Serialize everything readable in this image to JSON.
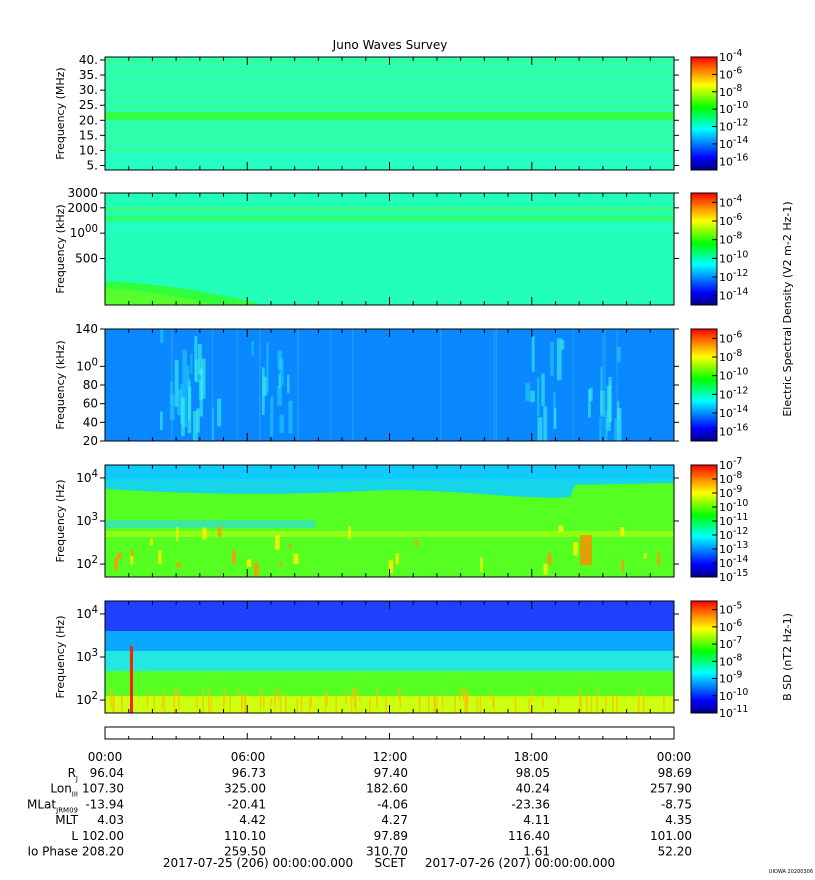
{
  "title": "Juno Waves Survey",
  "credit": "UIOWA 20200306",
  "chart_data": [
    {
      "type": "heatmap",
      "name": "hfr-high",
      "ylabel": "Frequency (MHz)",
      "y_ticks": [
        "40.",
        "35.",
        "30.",
        "25.",
        "20.",
        "15.",
        "10.",
        "5."
      ],
      "y_values": [
        40,
        35,
        30,
        25,
        20,
        15,
        10,
        5
      ],
      "ylim": [
        3.5,
        41
      ],
      "yscale": "linear",
      "colorbar_ticks": [
        "10-4",
        "10-6",
        "10-8",
        "10-10",
        "10-12",
        "10-14",
        "10-16"
      ],
      "colorbar_range": [
        -17,
        -4
      ]
    },
    {
      "type": "heatmap",
      "name": "hfr-low",
      "ylabel": "Frequency (kHz)",
      "y_ticks": [
        "3000",
        "2000",
        "1000",
        "500"
      ],
      "y_values": [
        3000,
        2000,
        1000,
        500
      ],
      "ylim": [
        140,
        3000
      ],
      "yscale": "log",
      "colorbar_ticks": [
        "10-4",
        "10-6",
        "10-8",
        "10-10",
        "10-12",
        "10-14"
      ],
      "colorbar_range": [
        -15,
        -3
      ],
      "colorbar_label": "Electric Spectral Density (V2 m-2 Hz-1)"
    },
    {
      "type": "heatmap",
      "name": "lfr-high",
      "ylabel": "Frequency (kHz)",
      "y_ticks": [
        "140",
        "100",
        "80",
        "60",
        "40",
        "20"
      ],
      "y_values": [
        140,
        100,
        80,
        60,
        40,
        20
      ],
      "ylim": [
        20,
        140
      ],
      "yscale": "linear",
      "colorbar_ticks": [
        "10-6",
        "10-8",
        "10-10",
        "10-12",
        "10-14",
        "10-16"
      ],
      "colorbar_range": [
        -17,
        -5
      ]
    },
    {
      "type": "heatmap",
      "name": "lfr-low",
      "ylabel": "Frequency (Hz)",
      "y_ticks": [
        "104",
        "103",
        "102"
      ],
      "y_values": [
        10000,
        1000,
        100
      ],
      "ylim": [
        50,
        20000
      ],
      "yscale": "log",
      "colorbar_ticks": [
        "10-7",
        "10-8",
        "10-9",
        "10-10",
        "10-11",
        "10-12",
        "10-13",
        "10-14",
        "10-15"
      ],
      "colorbar_range": [
        -15,
        -7
      ]
    },
    {
      "type": "heatmap",
      "name": "magnetic",
      "ylabel": "Frequency (Hz)",
      "y_ticks": [
        "104",
        "103",
        "102"
      ],
      "y_values": [
        10000,
        1000,
        100
      ],
      "ylim": [
        50,
        20000
      ],
      "yscale": "log",
      "colorbar_ticks": [
        "10-5",
        "10-6",
        "10-7",
        "10-8",
        "10-9",
        "10-10",
        "10-11"
      ],
      "colorbar_range": [
        -11,
        -4.5
      ],
      "colorbar_label": "B SD (nT2 Hz-1)"
    }
  ],
  "ephemeris": {
    "columns": [
      "00:00",
      "06:00",
      "12:00",
      "18:00",
      "00:00"
    ],
    "rows": [
      {
        "label": "R",
        "sub": "J",
        "values": [
          "96.04",
          "96.73",
          "97.40",
          "98.05",
          "98.69"
        ]
      },
      {
        "label": "Lon",
        "sub": "III",
        "values": [
          "107.30",
          "325.00",
          "182.60",
          "40.24",
          "257.90"
        ]
      },
      {
        "label": "MLat",
        "sub": "JRM09",
        "values": [
          "-13.94",
          "-20.41",
          "-4.06",
          "-23.36",
          "-8.75"
        ]
      },
      {
        "label": "MLT",
        "sub": "",
        "values": [
          "4.03",
          "4.42",
          "4.27",
          "4.11",
          "4.35"
        ]
      },
      {
        "label": "L",
        "sub": "",
        "values": [
          "102.00",
          "110.10",
          "97.89",
          "116.40",
          "101.00"
        ]
      },
      {
        "label": "Io Phase",
        "sub": "",
        "values": [
          "208.20",
          "259.50",
          "310.70",
          "1.61",
          "52.20"
        ]
      }
    ]
  },
  "footer": {
    "start": "2017-07-25 (206) 00:00:00.000",
    "scet": "SCET",
    "end": "2017-07-26 (207) 00:00:00.000"
  }
}
